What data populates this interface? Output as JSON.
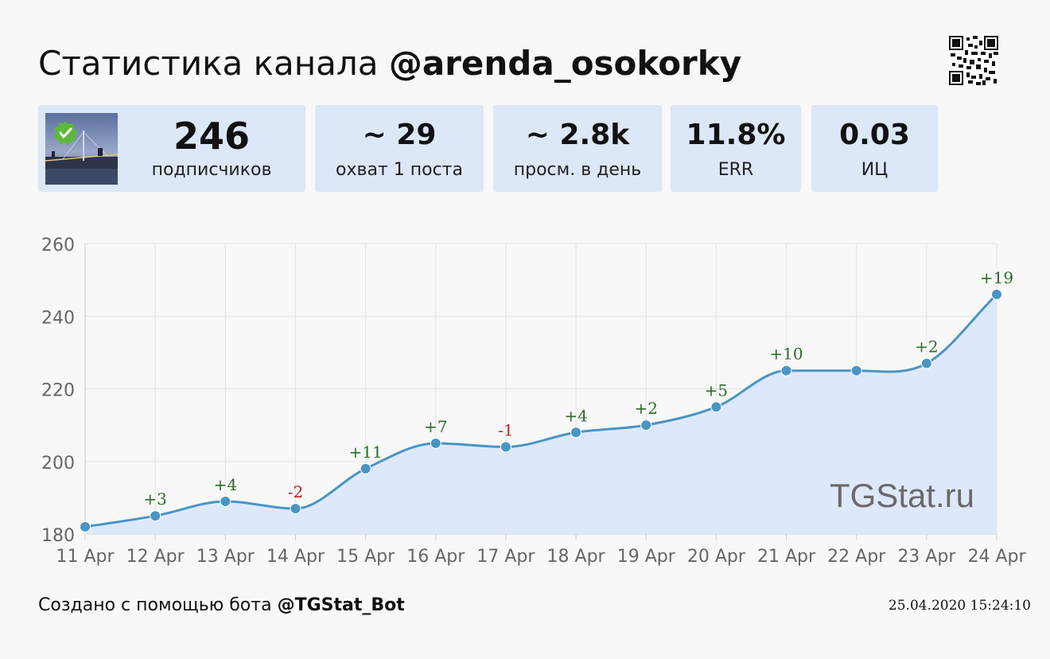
{
  "header": {
    "title_prefix": "Статистика канала ",
    "channel": "@arenda_osokorky"
  },
  "stats": [
    {
      "value": "246",
      "label": "подписчиков"
    },
    {
      "value": "~ 29",
      "label": "охват 1 поста"
    },
    {
      "value": "~ 2.8k",
      "label": "просм. в день"
    },
    {
      "value": "11.8%",
      "label": "ERR"
    },
    {
      "value": "0.03",
      "label": "ИЦ"
    }
  ],
  "chart_data": {
    "type": "line",
    "categories": [
      "11 Apr",
      "12 Apr",
      "13 Apr",
      "14 Apr",
      "15 Apr",
      "16 Apr",
      "17 Apr",
      "18 Apr",
      "19 Apr",
      "20 Apr",
      "21 Apr",
      "22 Apr",
      "23 Apr",
      "24 Apr"
    ],
    "values": [
      182,
      185,
      189,
      187,
      198,
      205,
      204,
      208,
      210,
      215,
      225,
      225,
      227,
      246
    ],
    "deltas": [
      "",
      "+3",
      "+4",
      "-2",
      "+11",
      "+7",
      "-1",
      "+4",
      "+2",
      "+5",
      "+10",
      "",
      "+2",
      "+19"
    ],
    "yticks": [
      "260",
      "240",
      "220",
      "200",
      "180"
    ],
    "ylim": [
      180,
      260
    ],
    "grid": true,
    "watermark": "TGStat.ru",
    "colors": {
      "line": "#4a95c4",
      "area": "#dde9fa",
      "positive": "#2e6b2a",
      "negative": "#c0201e",
      "grid": "#e2e2e2",
      "axis_text": "#666666"
    }
  },
  "footer": {
    "prefix": "Создано с помощью бота ",
    "bot": "@TGStat_Bot",
    "timestamp": "25.04.2020 15:24:10"
  }
}
